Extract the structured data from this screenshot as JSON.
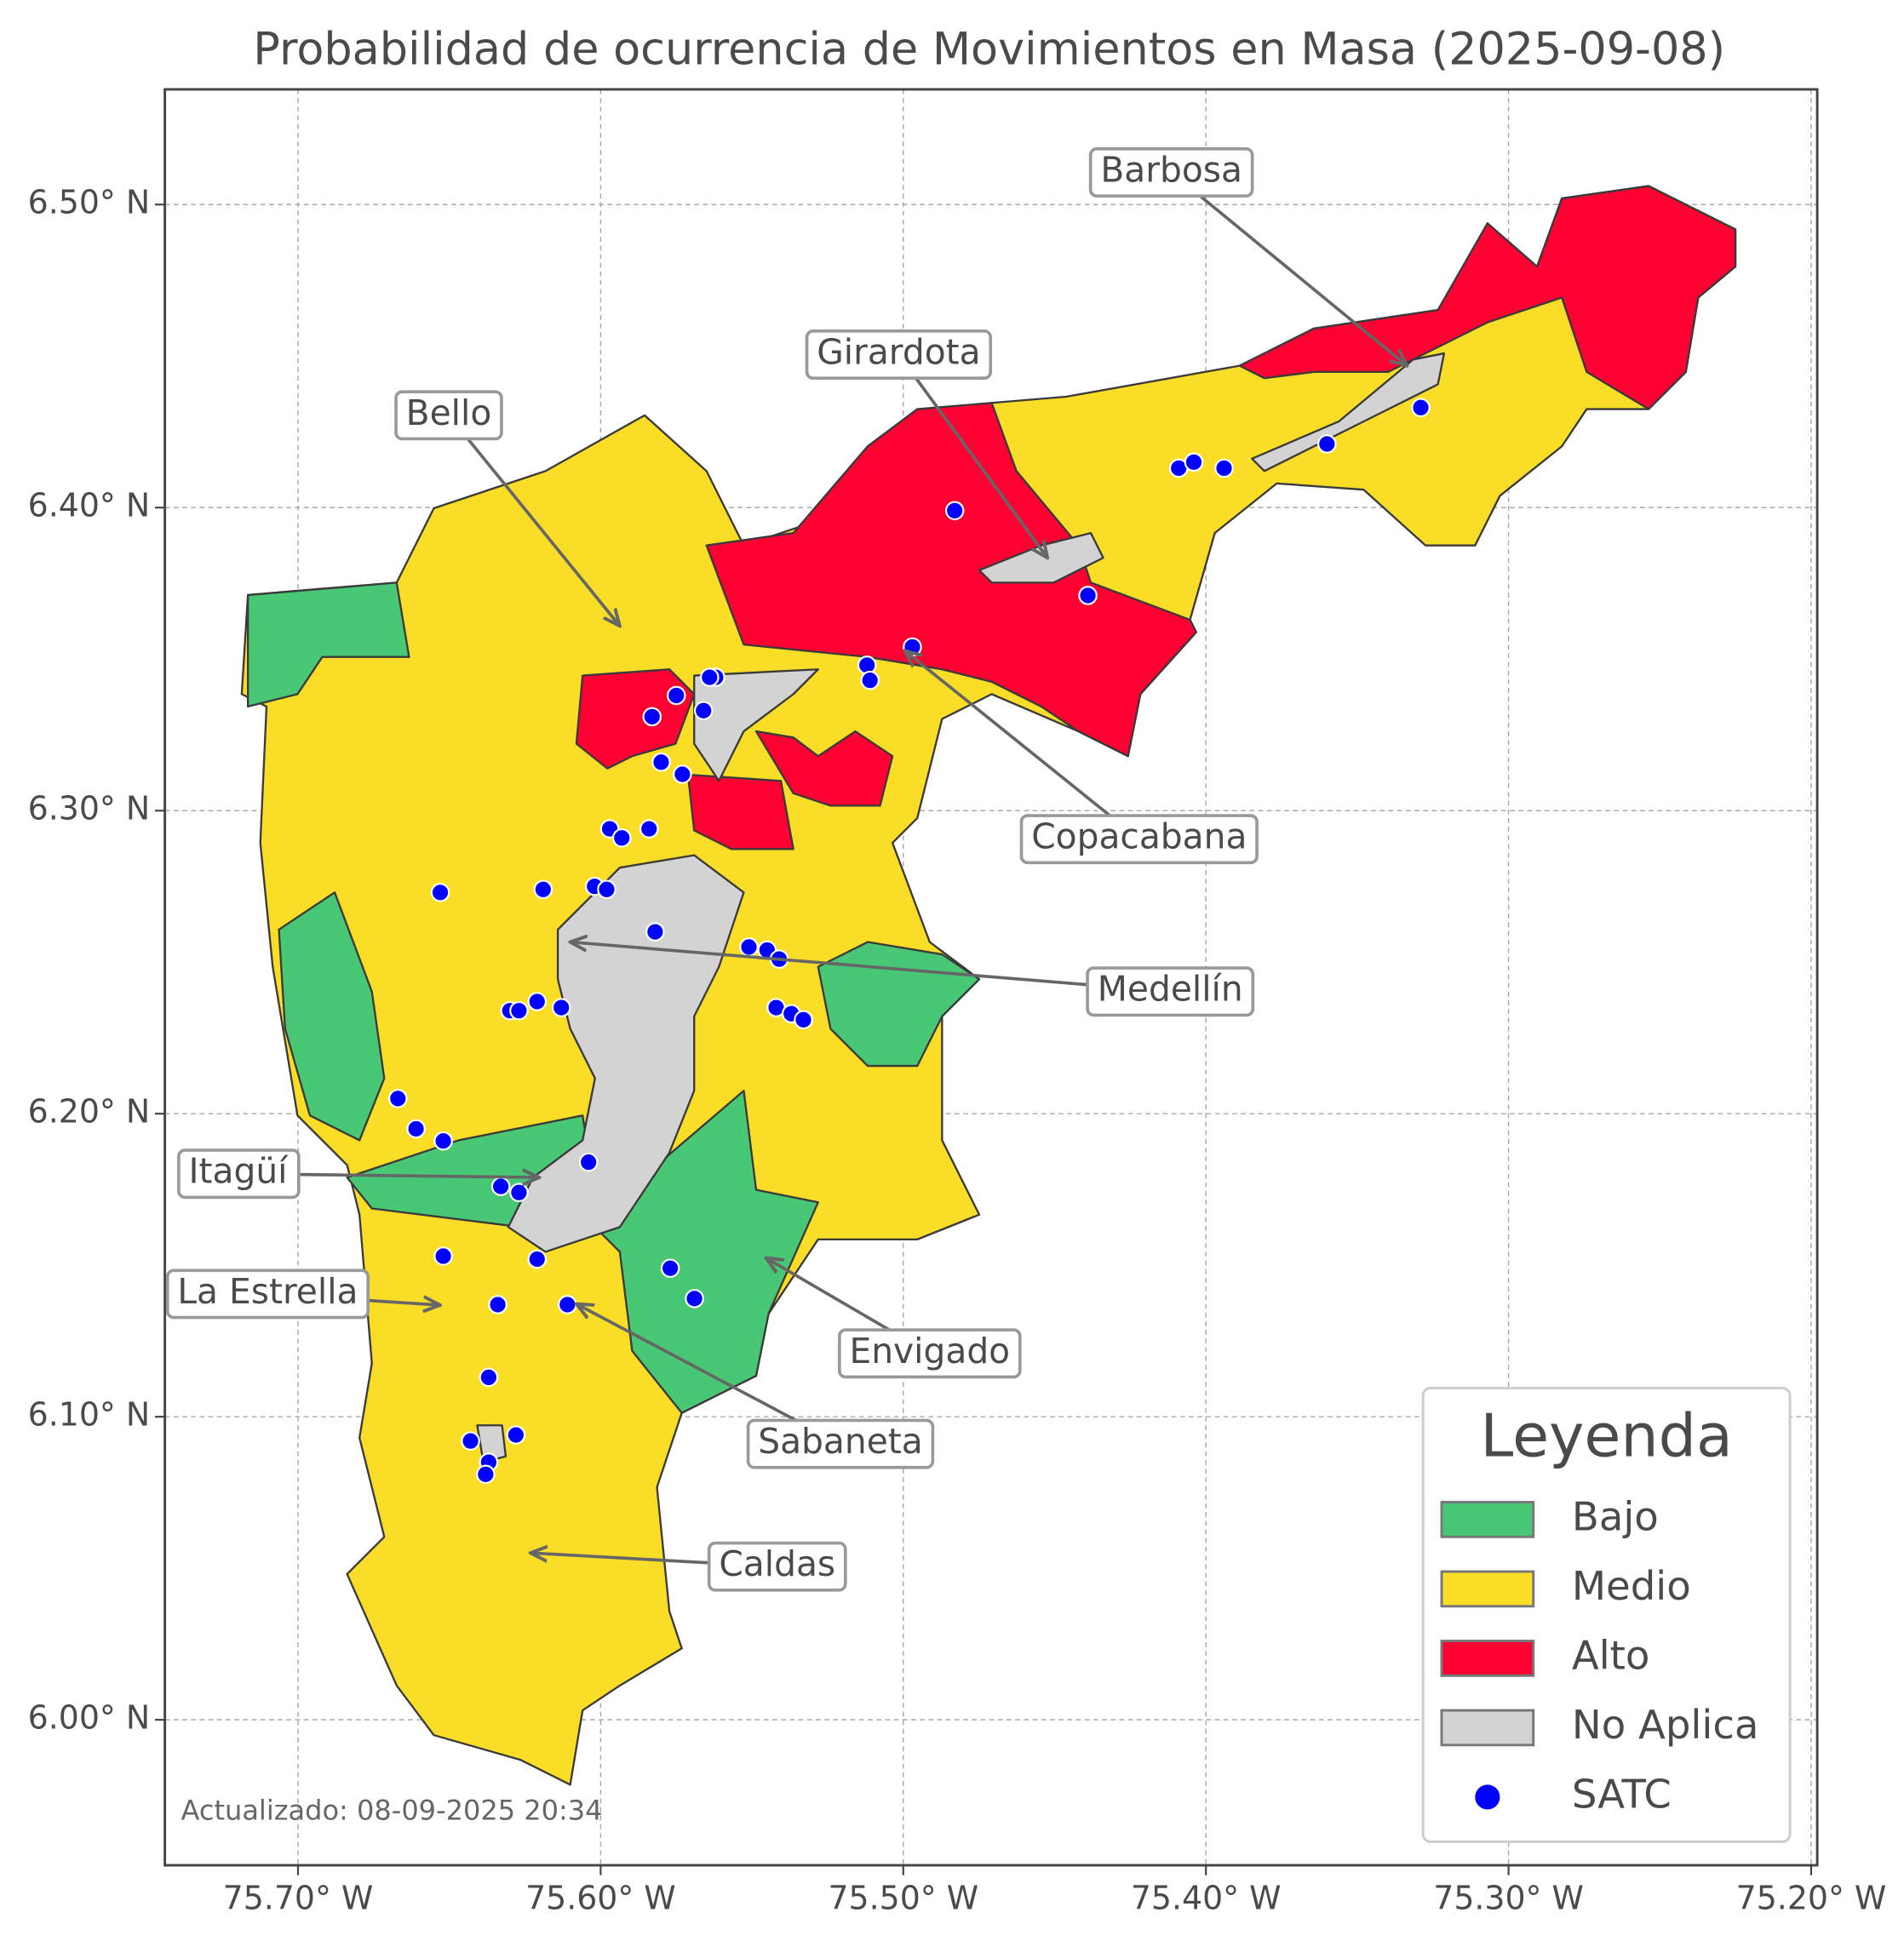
{
  "map": {
    "title": "Probabilidad de ocurrencia de Movimientos en Masa (2025-09-08)",
    "xlim": [
      -75.744,
      -75.198
    ],
    "ylim": [
      5.952,
      6.538
    ],
    "xticks": [
      {
        "value": -75.7,
        "label": "75.70° W"
      },
      {
        "value": -75.6,
        "label": "75.60° W"
      },
      {
        "value": -75.5,
        "label": "75.50° W"
      },
      {
        "value": -75.4,
        "label": "75.40° W"
      },
      {
        "value": -75.3,
        "label": "75.30° W"
      },
      {
        "value": -75.2,
        "label": "75.20° W"
      }
    ],
    "yticks": [
      {
        "value": 6.0,
        "label": "6.00° N"
      },
      {
        "value": 6.1,
        "label": "6.10° N"
      },
      {
        "value": 6.2,
        "label": "6.20° N"
      },
      {
        "value": 6.3,
        "label": "6.30° N"
      },
      {
        "value": 6.4,
        "label": "6.40° N"
      },
      {
        "value": 6.5,
        "label": "6.50° N"
      }
    ],
    "grid": true,
    "legend": {
      "title": "Leyenda",
      "position": "lower right",
      "items": [
        {
          "label": "Bajo",
          "color": "#48c774"
        },
        {
          "label": "Medio",
          "color": "#fadd27"
        },
        {
          "label": "Alto",
          "color": "#ff0033"
        },
        {
          "label": "No Aplica",
          "color": "#d3d3d3"
        }
      ]
    },
    "satc": {
      "name": "SATC",
      "color": "#0000ff",
      "lon": [
        -75.329,
        -75.36,
        -75.409,
        -75.404,
        -75.394,
        -75.483,
        -75.439,
        -75.497,
        -75.512,
        -75.511,
        -75.562,
        -75.564,
        -75.575,
        -75.583,
        -75.566,
        -75.58,
        -75.573,
        -75.597,
        -75.593,
        -75.584,
        -75.653,
        -75.619,
        -75.602,
        -75.598,
        -75.582,
        -75.551,
        -75.545,
        -75.541,
        -75.542,
        -75.537,
        -75.533,
        -75.63,
        -75.627,
        -75.621,
        -75.613,
        -75.667,
        -75.661,
        -75.652,
        -75.604,
        -75.633,
        -75.627,
        -75.652,
        -75.621,
        -75.577,
        -75.569,
        -75.634,
        -75.611,
        -75.637,
        -75.643,
        -75.628,
        -75.637,
        -75.638
      ],
      "lat": [
        6.433,
        6.421,
        6.413,
        6.415,
        6.413,
        6.399,
        6.371,
        6.354,
        6.348,
        6.343,
        6.344,
        6.344,
        6.338,
        6.331,
        6.333,
        6.316,
        6.312,
        6.294,
        6.291,
        6.294,
        6.273,
        6.274,
        6.275,
        6.274,
        6.26,
        6.255,
        6.254,
        6.251,
        6.235,
        6.233,
        6.231,
        6.234,
        6.234,
        6.237,
        6.235,
        6.205,
        6.195,
        6.191,
        6.184,
        6.176,
        6.174,
        6.153,
        6.152,
        6.149,
        6.139,
        6.137,
        6.137,
        6.113,
        6.092,
        6.094,
        6.085,
        6.081
      ]
    },
    "annotations": [
      "Barbosa",
      "Girardota",
      "Bello",
      "Copacabana",
      "Medellín",
      "Itagüí",
      "La Estrella",
      "Envigado",
      "Sabaneta",
      "Caldas"
    ],
    "footnote": "Actualizado: 08-09-2025 20:34"
  }
}
